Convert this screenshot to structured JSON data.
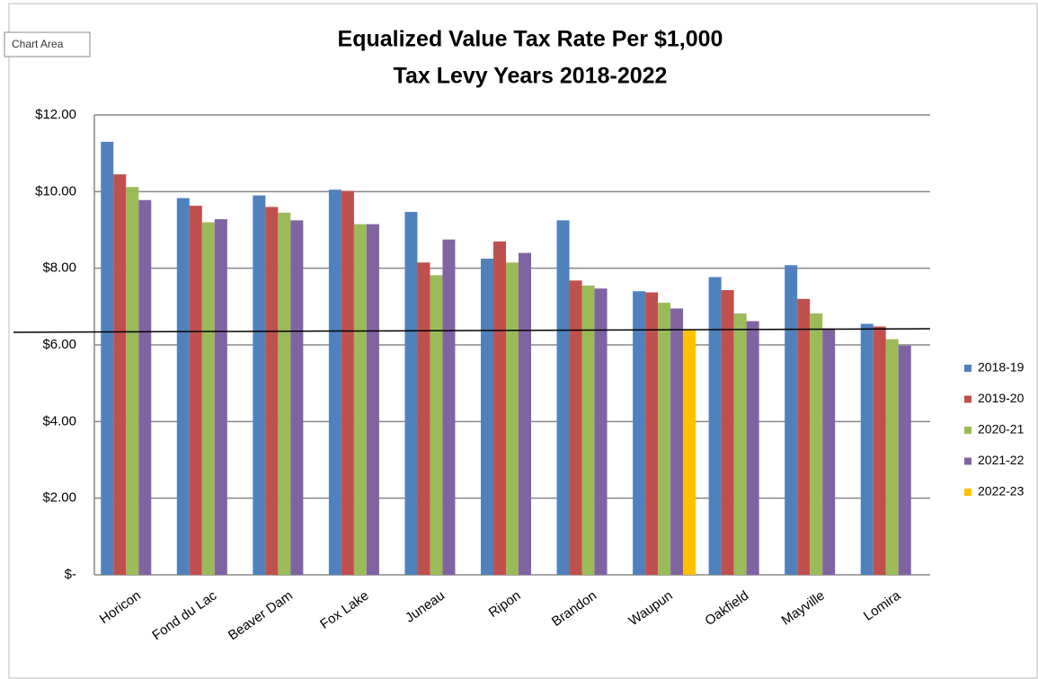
{
  "tooltip": "Chart Area",
  "chart_data": {
    "type": "bar",
    "title": [
      "Equalized Value Tax Rate Per $1,000",
      "Tax Levy Years 2018-2022"
    ],
    "categories": [
      "Horicon",
      "Fond du Lac",
      "Beaver Dam",
      "Fox Lake",
      "Juneau",
      "Ripon",
      "Brandon",
      "Waupun",
      "Oakfield",
      "Mayville",
      "Lomira"
    ],
    "series": [
      {
        "name": "2018-19",
        "color": "#4f81bd",
        "values": [
          11.3,
          9.83,
          9.9,
          10.05,
          9.47,
          8.25,
          9.25,
          7.4,
          7.77,
          8.08,
          6.55
        ]
      },
      {
        "name": "2019-20",
        "color": "#c0504d",
        "values": [
          10.45,
          9.63,
          9.6,
          10.02,
          8.15,
          8.7,
          7.68,
          7.37,
          7.43,
          7.2,
          6.48
        ]
      },
      {
        "name": "2020-21",
        "color": "#9bbb59",
        "values": [
          10.12,
          9.2,
          9.45,
          9.15,
          7.82,
          8.15,
          7.55,
          7.1,
          6.82,
          6.82,
          6.15
        ]
      },
      {
        "name": "2021-22",
        "color": "#8064a2",
        "values": [
          9.78,
          9.28,
          9.25,
          9.15,
          8.75,
          8.4,
          7.47,
          6.95,
          6.62,
          6.43,
          5.98
        ]
      },
      {
        "name": "2022-23",
        "color": "#ffc000",
        "values": [
          null,
          null,
          null,
          null,
          null,
          null,
          null,
          6.4,
          null,
          null,
          null
        ]
      }
    ],
    "ylim": [
      0,
      12
    ],
    "yticks": [
      {
        "value": 0,
        "label": "$-"
      },
      {
        "value": 2,
        "label": "$2.00"
      },
      {
        "value": 4,
        "label": "$4.00"
      },
      {
        "value": 6,
        "label": "$6.00"
      },
      {
        "value": 8,
        "label": "$8.00"
      },
      {
        "value": 10,
        "label": "$10.00"
      },
      {
        "value": 12,
        "label": "$12.00"
      }
    ],
    "grid": true,
    "legend": "right"
  }
}
